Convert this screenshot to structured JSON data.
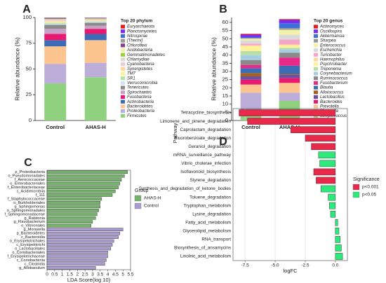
{
  "chart_data": [
    {
      "type": "bar",
      "label": "A",
      "stacked": true,
      "ylabel": "Relative abundance (%)",
      "legend_title": "Top 20 phylum",
      "categories": [
        "Control",
        "AHAS-H"
      ],
      "ylim": [
        0,
        100
      ],
      "yticks": [
        0,
        25,
        50,
        75,
        100
      ],
      "series": [
        {
          "name": "Firmicutes",
          "color": "#8fd17f",
          "values": [
            36,
            42
          ]
        },
        {
          "name": "Proteobacteria",
          "color": "#bcaed8",
          "values": [
            19,
            14
          ]
        },
        {
          "name": "Bacteroidetes",
          "color": "#fcc48e",
          "values": [
            17,
            22
          ]
        },
        {
          "name": "Actinobacteria",
          "color": "#3b6cb5",
          "values": [
            6,
            6
          ]
        },
        {
          "name": "Fusobacteria",
          "color": "#e8196e",
          "values": [
            6,
            5
          ]
        },
        {
          "name": "Spirochaetes",
          "color": "#c9a0c8",
          "values": [
            5,
            3
          ]
        },
        {
          "name": "Tenericutes",
          "color": "#8a8a8a",
          "values": [
            4,
            3
          ]
        },
        {
          "name": "Verrucomicrobia",
          "color": "#cde7f2",
          "values": [
            1,
            1
          ]
        },
        {
          "name": "SR1",
          "color": "#b8e0a6",
          "values": [
            1,
            0.5
          ]
        },
        {
          "name": "TM7",
          "color": "#fff09a",
          "values": [
            1,
            0.5
          ]
        },
        {
          "name": "Synergistetes",
          "color": "#ffd6a0",
          "values": [
            0.5,
            0.5
          ]
        },
        {
          "name": "Cyanobacteria",
          "color": "#f4c9d4",
          "values": [
            1,
            0.5
          ]
        },
        {
          "name": "Chlamydiae",
          "color": "#dadada",
          "values": [
            0.5,
            0.3
          ]
        },
        {
          "name": "Gemmatimonadetes",
          "color": "#9ccf3c",
          "values": [
            0.3,
            0.3
          ]
        },
        {
          "name": "Acidobacteria",
          "color": "#f2f2a8",
          "values": [
            0.3,
            0.3
          ]
        },
        {
          "name": "Chloroflexi",
          "color": "#8b3e8c",
          "values": [
            0.5,
            0.3
          ]
        },
        {
          "name": "[Thermi]",
          "color": "#9a9a9a",
          "values": [
            0.3,
            0.3
          ]
        },
        {
          "name": "Nitrospirae",
          "color": "#3c70d6",
          "values": [
            0.2,
            0.2
          ]
        },
        {
          "name": "Planctomycetes",
          "color": "#7a2cf0",
          "values": [
            0.2,
            0.2
          ]
        },
        {
          "name": "Euryarchaeota",
          "color": "#e41a1c",
          "values": [
            0.2,
            0.1
          ]
        }
      ]
    },
    {
      "type": "bar",
      "label": "B",
      "stacked": true,
      "ylabel": "Relative abundance (%)",
      "legend_title": "Top 20 genus",
      "categories": [
        "Control",
        "AHAS-H"
      ],
      "ylim": [
        0,
        63
      ],
      "yticks": [
        0,
        5,
        10,
        15,
        20,
        25,
        30,
        35,
        40,
        45,
        50,
        55,
        60
      ],
      "series": [
        {
          "name": "Streptococcus",
          "color": "#8fd17f",
          "values": [
            6,
            12
          ]
        },
        {
          "name": "Moraxella",
          "color": "#bcaed8",
          "values": [
            11,
            5
          ]
        },
        {
          "name": "Prevotella",
          "color": "#fcc48e",
          "values": [
            5,
            6
          ]
        },
        {
          "name": "Bacteroides",
          "color": "#e8196e",
          "values": [
            3,
            3
          ]
        },
        {
          "name": "Lactobacillus",
          "color": "#6a51a3",
          "values": [
            2,
            2
          ]
        },
        {
          "name": "Alloiococcus",
          "color": "#a6611a",
          "values": [
            2,
            0.5
          ]
        },
        {
          "name": "Blautia",
          "color": "#3b6cb5",
          "values": [
            3,
            5
          ]
        },
        {
          "name": "Fusobacterium",
          "color": "#e7298a",
          "values": [
            2,
            5
          ]
        },
        {
          "name": "Ruminococcus",
          "color": "#8a8a8a",
          "values": [
            3,
            3
          ]
        },
        {
          "name": "Corynebacterium",
          "color": "#a6cee3",
          "values": [
            3,
            2
          ]
        },
        {
          "name": "Treponema",
          "color": "#b8e0a6",
          "values": [
            2.5,
            1
          ]
        },
        {
          "name": "Psychrobacter",
          "color": "#fff09a",
          "values": [
            3,
            1.5
          ]
        },
        {
          "name": "Haemophilus",
          "color": "#ffd6a0",
          "values": [
            0.5,
            0.5
          ]
        },
        {
          "name": "Turicibacter",
          "color": "#f4a6c8",
          "values": [
            1,
            3
          ]
        },
        {
          "name": "Escherichia",
          "color": "#dadada",
          "values": [
            2,
            3
          ]
        },
        {
          "name": "Enterococcus",
          "color": "#f2f2a8",
          "values": [
            1,
            3
          ]
        },
        {
          "name": "Sharpea",
          "color": "#9a9a9a",
          "values": [
            0.5,
            1
          ]
        },
        {
          "name": "Akkermansia",
          "color": "#3c70d6",
          "values": [
            0.5,
            3
          ]
        },
        {
          "name": "Oscillospira",
          "color": "#7a2cf0",
          "values": [
            1.5,
            2
          ]
        },
        {
          "name": "Actinomyces",
          "color": "#e41a1c",
          "values": [
            0.5,
            0.5
          ]
        }
      ]
    },
    {
      "type": "bar",
      "label": "C",
      "orientation": "horizontal",
      "xlabel": "LDA Score(log 10)",
      "legend_title": "Group",
      "categories": [
        "p_Proteobacteria",
        "o_Pseudomonadales",
        "f_Aerococcaceae",
        "o_Enterobacteriales",
        "f_Enterobacteriaceae",
        "c_Acidimicrobiia",
        "f_111",
        "f_Staphylococcaceae",
        "o_Burkholderiales",
        "g_Sphingomonas",
        "o_Sphingomonadales",
        "f_Sphingomonadaceae",
        "g_Ralstonia",
        "g_Flavobacterium",
        "o_Vibrionales",
        "g_Moraxella",
        "p_Bacteroidetes",
        "c_Bacteroidia",
        "o_Erysipelotrichales",
        "c_Erysipelotrichi",
        "o_Lactobacillales",
        "o_Coriobacteriales",
        "f_Erysipelotrichaceae",
        "c_Coriobacteriia",
        "c_Clostridia",
        "g_Allobaculum"
      ],
      "xlim": [
        0,
        5.5
      ],
      "xticks": [
        0,
        0.5,
        1,
        1.5,
        2,
        2.5,
        3,
        3.5,
        4,
        4.5,
        5,
        5.5
      ],
      "series": [
        {
          "name": "AHAS-H",
          "color": "#74b46a",
          "values": [
            5.3,
            5.1,
            4.9,
            4.8,
            4.7,
            4.5,
            4.3,
            3.6,
            3.5,
            3.5,
            3.4,
            3.3,
            3.2,
            3.0,
            2.9,
            null,
            null,
            null,
            null,
            null,
            null,
            null,
            null,
            null,
            null,
            null
          ]
        },
        {
          "name": "Control",
          "color": "#a99bd0",
          "values": [
            null,
            null,
            null,
            null,
            null,
            null,
            null,
            null,
            null,
            null,
            null,
            null,
            null,
            null,
            null,
            5.0,
            4.8,
            4.7,
            4.4,
            4.3,
            4.2,
            4.0,
            4.0,
            3.9,
            3.8,
            3.2
          ]
        }
      ]
    },
    {
      "type": "bar",
      "label": "D",
      "orientation": "horizontal",
      "xlabel": "logFC",
      "ylabel": "Pathway",
      "legend_title": "Significance",
      "grid": true,
      "categories": [
        "Tetracycline_biosynthesis",
        "Limonene_and_pinene_degradation",
        "Caprolactam_degradation",
        "Fluorobenzoate_degradation",
        "Geraniol_degradation",
        "mRNA_surveillance_pathway",
        "Vibrio_cholerae_infection",
        "Isoflavonoid_biosynthesis",
        "Styrene_degradation",
        "Synthesis_and_degradation_of_ketone_bodies",
        "Toluene_degradation",
        "Tryptophan_metabolism",
        "Lysine_degradation",
        "Fatty_acid_metabolism",
        "Glycerolipid_metabolism",
        "RNA_transport",
        "Biosynthesis_of_ansamycins",
        "Linoleic_acid_metabolism"
      ],
      "xlim": [
        -8.5,
        1
      ],
      "xticks": [
        -7.5,
        {
          "value": -5,
          "label": "-5.0"
        },
        -2.5,
        {
          "value": 0,
          "label": "0.0"
        }
      ],
      "series": [
        {
          "name": "p<0.001",
          "color": "#e8294a",
          "values": [
            -8.0,
            -7.3,
            -3.7,
            -2.5,
            -2.0,
            null,
            null,
            -1.8,
            -1.6,
            null,
            null,
            null,
            null,
            null,
            null,
            null,
            null,
            null
          ]
        },
        {
          "name": "p<0.05",
          "color": "#2ee87a",
          "values": [
            null,
            null,
            null,
            null,
            null,
            -1.4,
            -1.3,
            null,
            null,
            -1.2,
            -0.6,
            -0.5,
            -0.4,
            0.2,
            0.3,
            0.4,
            0.5,
            0.6
          ]
        }
      ]
    }
  ]
}
